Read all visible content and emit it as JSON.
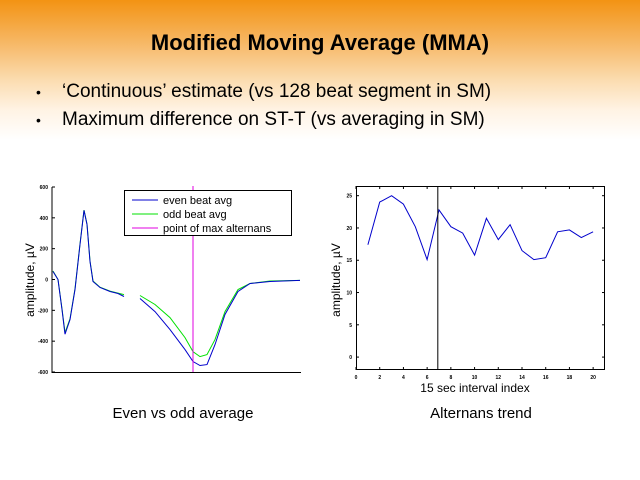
{
  "slide": {
    "title": "Modified Moving Average (MMA)",
    "bullets": [
      "‘Continuous’ estimate (vs 128 beat segment in SM)",
      "Maximum difference on ST-T (vs averaging in SM)"
    ],
    "bullet_glyph": "•",
    "captions": [
      "Even vs odd average",
      "Alternans trend"
    ]
  },
  "colors": {
    "even": "#0000cc",
    "odd": "#00e000",
    "marker": "#e000e0",
    "trend": "#0000cc",
    "trend_marker": "#000000"
  },
  "chart_data": [
    {
      "type": "line",
      "title": "Even vs odd average",
      "xlabel": "",
      "ylabel": "amplitude, µV",
      "ylim": [
        -600,
        600
      ],
      "yticks": [
        600,
        400,
        200,
        0,
        -200,
        -400,
        -600
      ],
      "ytick_labels": [
        "600",
        "400",
        "200",
        "0",
        "-200",
        "-400",
        "-600"
      ],
      "xlim": [
        0,
        248
      ],
      "grid": false,
      "legend": {
        "placement": "top-right",
        "entries": [
          "even beat avg",
          "odd beat avg",
          "point of max alternans"
        ]
      },
      "series": [
        {
          "name": "even beat avg",
          "segments": [
            {
              "x": [
                1,
                6,
                10,
                13,
                18,
                23,
                28,
                32,
                35,
                38,
                41,
                48,
                58,
                66,
                72
              ],
              "y": [
                52,
                0,
                -195,
                -355,
                -260,
                -65,
                227,
                448,
                357,
                117,
                -13,
                -52,
                -78,
                -91,
                -110
              ]
            },
            {
              "x": [
                88,
                103,
                118,
                133,
                141,
                148,
                155,
                163,
                173,
                186,
                198,
                218,
                248
              ],
              "y": [
                -123,
                -208,
                -325,
                -455,
                -532,
                -558,
                -552,
                -422,
                -227,
                -78,
                -26,
                -13,
                -6
              ]
            }
          ]
        },
        {
          "name": "odd beat avg",
          "segments": [
            {
              "x": [
                1,
                6,
                10,
                13,
                18,
                23,
                28,
                32,
                35,
                38,
                41,
                48,
                58,
                66,
                72
              ],
              "y": [
                55,
                0,
                -190,
                -345,
                -255,
                -60,
                230,
                450,
                360,
                120,
                -10,
                -50,
                -75,
                -88,
                -98
              ]
            },
            {
              "x": [
                88,
                103,
                118,
                133,
                141,
                148,
                155,
                163,
                173,
                186,
                198,
                218,
                248
              ],
              "y": [
                -104,
                -162,
                -247,
                -377,
                -468,
                -500,
                -487,
                -390,
                -208,
                -65,
                -26,
                -10,
                -6
              ]
            }
          ]
        }
      ],
      "annotations": [
        {
          "type": "vline",
          "name": "point of max alternans",
          "x": 141
        }
      ]
    },
    {
      "type": "line",
      "title": "Alternans trend",
      "xlabel": "15 sec interval index",
      "ylabel": "amplitude, µV",
      "xlim": [
        0,
        21
      ],
      "ylim": [
        -2,
        26.5
      ],
      "xticks": [
        0,
        2,
        4,
        6,
        8,
        10,
        12,
        14,
        16,
        18,
        20
      ],
      "yticks": [
        0,
        5,
        10,
        15,
        20,
        25
      ],
      "grid": false,
      "series": [
        {
          "name": "alternans",
          "x": [
            1,
            2,
            3,
            4,
            5,
            6,
            7,
            8,
            9,
            10,
            11,
            12,
            13,
            14,
            15,
            16,
            17,
            18,
            19,
            20
          ],
          "y": [
            17.4,
            24.0,
            25.0,
            23.7,
            20.2,
            15.1,
            22.8,
            20.2,
            19.2,
            15.8,
            21.5,
            18.2,
            20.5,
            16.5,
            15.1,
            15.4,
            19.4,
            19.7,
            18.5,
            19.4
          ]
        }
      ],
      "annotations": [
        {
          "type": "vline",
          "x": 6.9
        }
      ]
    }
  ]
}
